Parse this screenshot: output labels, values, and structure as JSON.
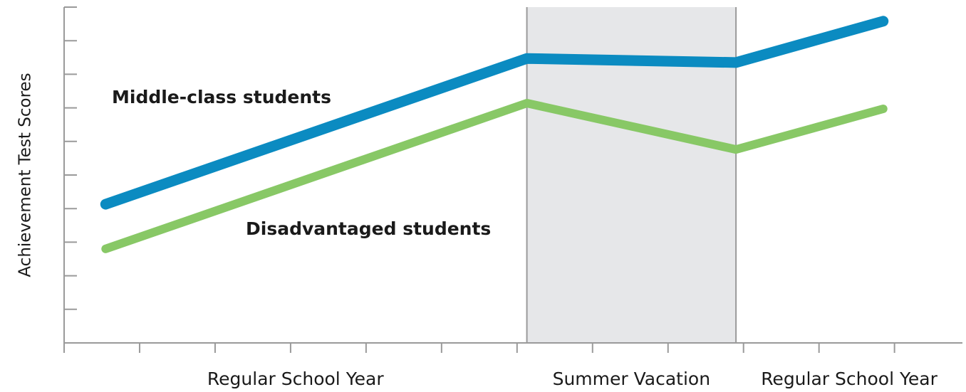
{
  "chart_data": {
    "type": "line",
    "ylabel": "Achievement Test Scores",
    "x": [
      0.55,
      6.13,
      8.9,
      10.85
    ],
    "xlim": [
      0,
      11.9
    ],
    "xticks": [
      0,
      1,
      2,
      3,
      4,
      5,
      6,
      7,
      8,
      9,
      10,
      11
    ],
    "ylim": [
      0,
      10
    ],
    "yticks": [
      0,
      1,
      2,
      3,
      4,
      5,
      6,
      7,
      8,
      9,
      10
    ],
    "regions": [
      {
        "label": "Regular School Year",
        "start": 0,
        "end": 6.13,
        "shaded": false
      },
      {
        "label": "Summer Vacation",
        "start": 6.13,
        "end": 8.9,
        "shaded": true,
        "color": "#e6e7e9"
      },
      {
        "label": "Regular School Year",
        "start": 8.9,
        "end": 11.9,
        "shaded": false
      }
    ],
    "series": [
      {
        "name": "Middle-class students",
        "color": "#0b8bc1",
        "values": [
          4.13,
          8.47,
          8.35,
          9.58
        ]
      },
      {
        "name": "Disadvantaged students",
        "color": "#88c866",
        "values": [
          2.8,
          7.14,
          5.76,
          6.97
        ]
      }
    ]
  }
}
